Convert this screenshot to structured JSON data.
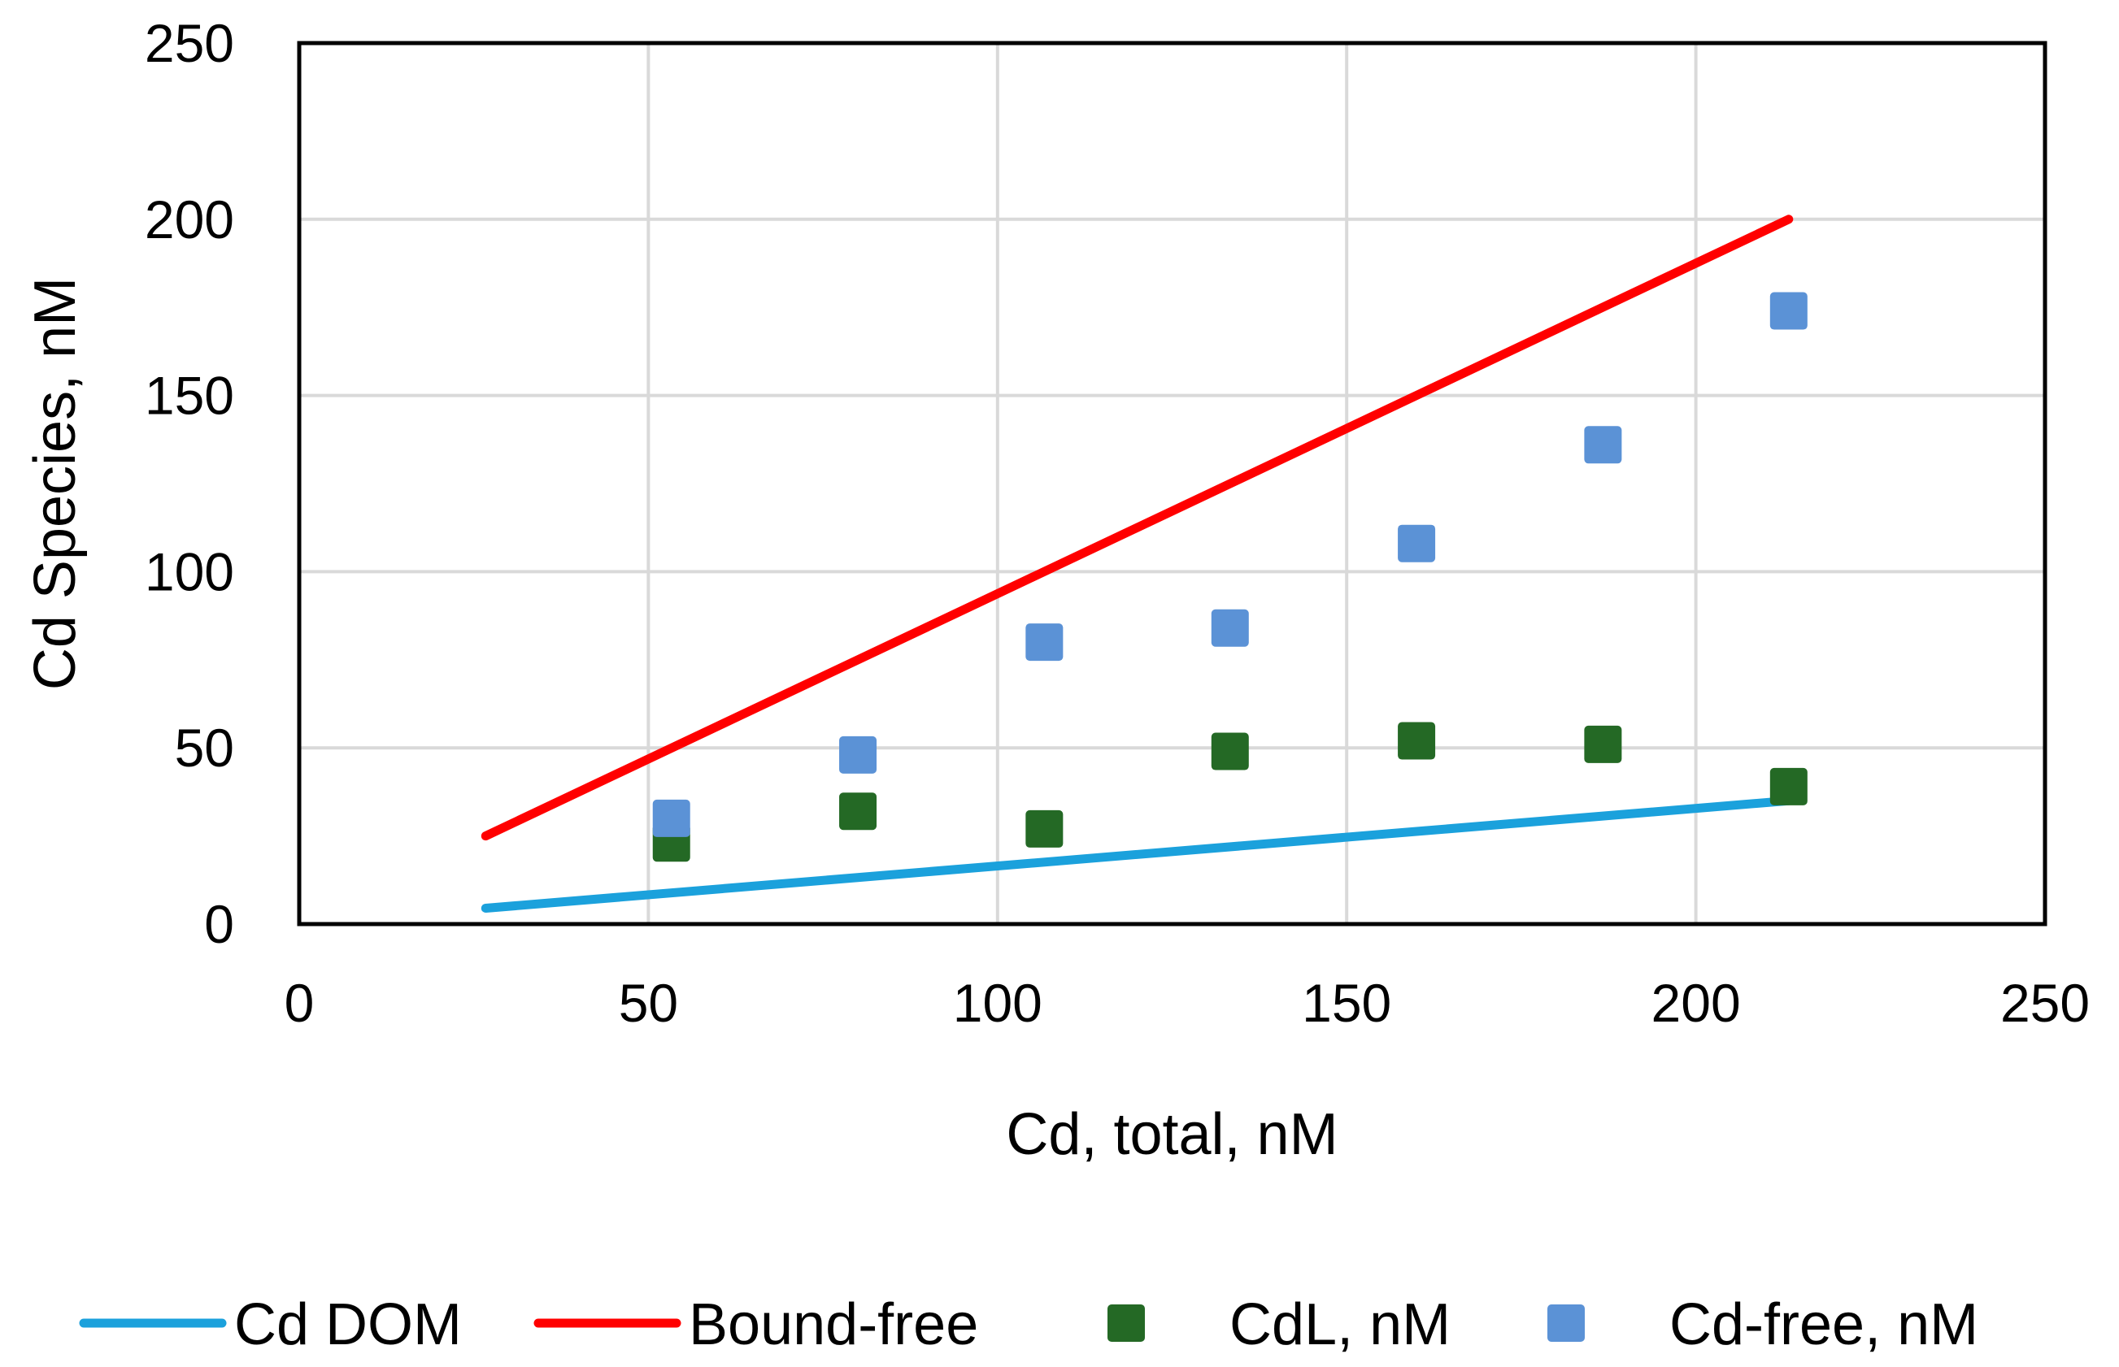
{
  "chart_data": {
    "type": "scatter",
    "title": "",
    "xlabel": "Cd, total, nM",
    "ylabel": "Cd Species, nM",
    "xlim": [
      0,
      250
    ],
    "ylim": [
      0,
      250
    ],
    "xticks": [
      "0",
      "50",
      "100",
      "150",
      "200",
      "250"
    ],
    "yticks": [
      "0",
      "50",
      "100",
      "150",
      "200",
      "250"
    ],
    "grid": true,
    "legend_position": "bottom",
    "series": [
      {
        "name": "Cd DOM",
        "kind": "line",
        "color": "#1ba1dc",
        "x": [
          26.7,
          213.3
        ],
        "y": [
          4.5,
          35
        ]
      },
      {
        "name": "Bound-free",
        "kind": "line",
        "color": "#ff0000",
        "x": [
          26.7,
          213.3
        ],
        "y": [
          25,
          200
        ]
      },
      {
        "name": "CdL, nM",
        "kind": "marker",
        "color": "#246925",
        "x": [
          53.3,
          80,
          106.7,
          133.3,
          160,
          186.7,
          213.3
        ],
        "y": [
          23,
          32,
          27,
          49,
          52,
          51,
          39
        ]
      },
      {
        "name": "Cd-free, nM",
        "kind": "marker",
        "color": "#5b92d6",
        "x": [
          53.3,
          80,
          106.7,
          133.3,
          160,
          186.7,
          213.3
        ],
        "y": [
          30,
          48,
          80,
          84,
          108,
          136,
          174
        ]
      }
    ]
  }
}
